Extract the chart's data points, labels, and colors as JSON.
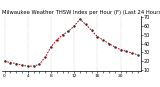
{
  "title": "Milwaukee Weather THSW Index per Hour (F) (Last 24 Hours)",
  "x": [
    0,
    1,
    2,
    3,
    4,
    5,
    6,
    7,
    8,
    9,
    10,
    11,
    12,
    13,
    14,
    15,
    16,
    17,
    18,
    19,
    20,
    21,
    22,
    23
  ],
  "y": [
    20,
    18,
    17,
    15,
    14,
    14,
    16,
    24,
    36,
    44,
    50,
    54,
    60,
    68,
    62,
    55,
    48,
    44,
    40,
    36,
    33,
    31,
    29,
    27
  ],
  "line_color": "#cc0000",
  "marker_color": "#333333",
  "background_color": "#ffffff",
  "grid_color": "#999999",
  "title_color": "#000000",
  "ylim": [
    8,
    72
  ],
  "yticks": [
    10,
    20,
    30,
    40,
    50,
    60,
    70
  ],
  "ylabel_fontsize": 3.5,
  "xlabel_fontsize": 3.2,
  "title_fontsize": 3.8,
  "line_width": 0.7,
  "marker_size": 1.5
}
